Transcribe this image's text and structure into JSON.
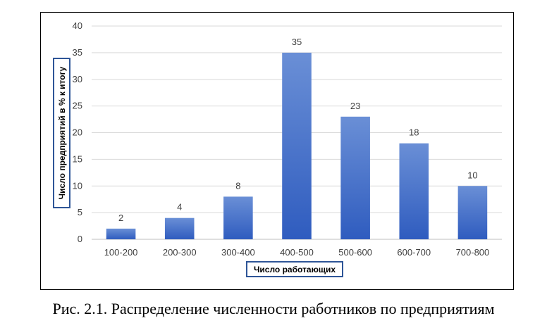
{
  "caption": "Рис. 2.1. Распределение численности работников по предприятиям",
  "chart_data": {
    "type": "bar",
    "categories": [
      "100-200",
      "200-300",
      "300-400",
      "400-500",
      "500-600",
      "600-700",
      "700-800"
    ],
    "values": [
      2,
      4,
      8,
      35,
      23,
      18,
      10
    ],
    "xlabel": "Число работающих",
    "ylabel": "Число предприятий в % к итогу",
    "ylim": [
      0,
      40
    ],
    "yticks": [
      0,
      5,
      10,
      15,
      20,
      25,
      30,
      35,
      40
    ],
    "grid": true,
    "bar_color_top": "#6a8fd6",
    "bar_color_bottom": "#2f5cbf",
    "axis_title_border_color": "#2e5597"
  }
}
